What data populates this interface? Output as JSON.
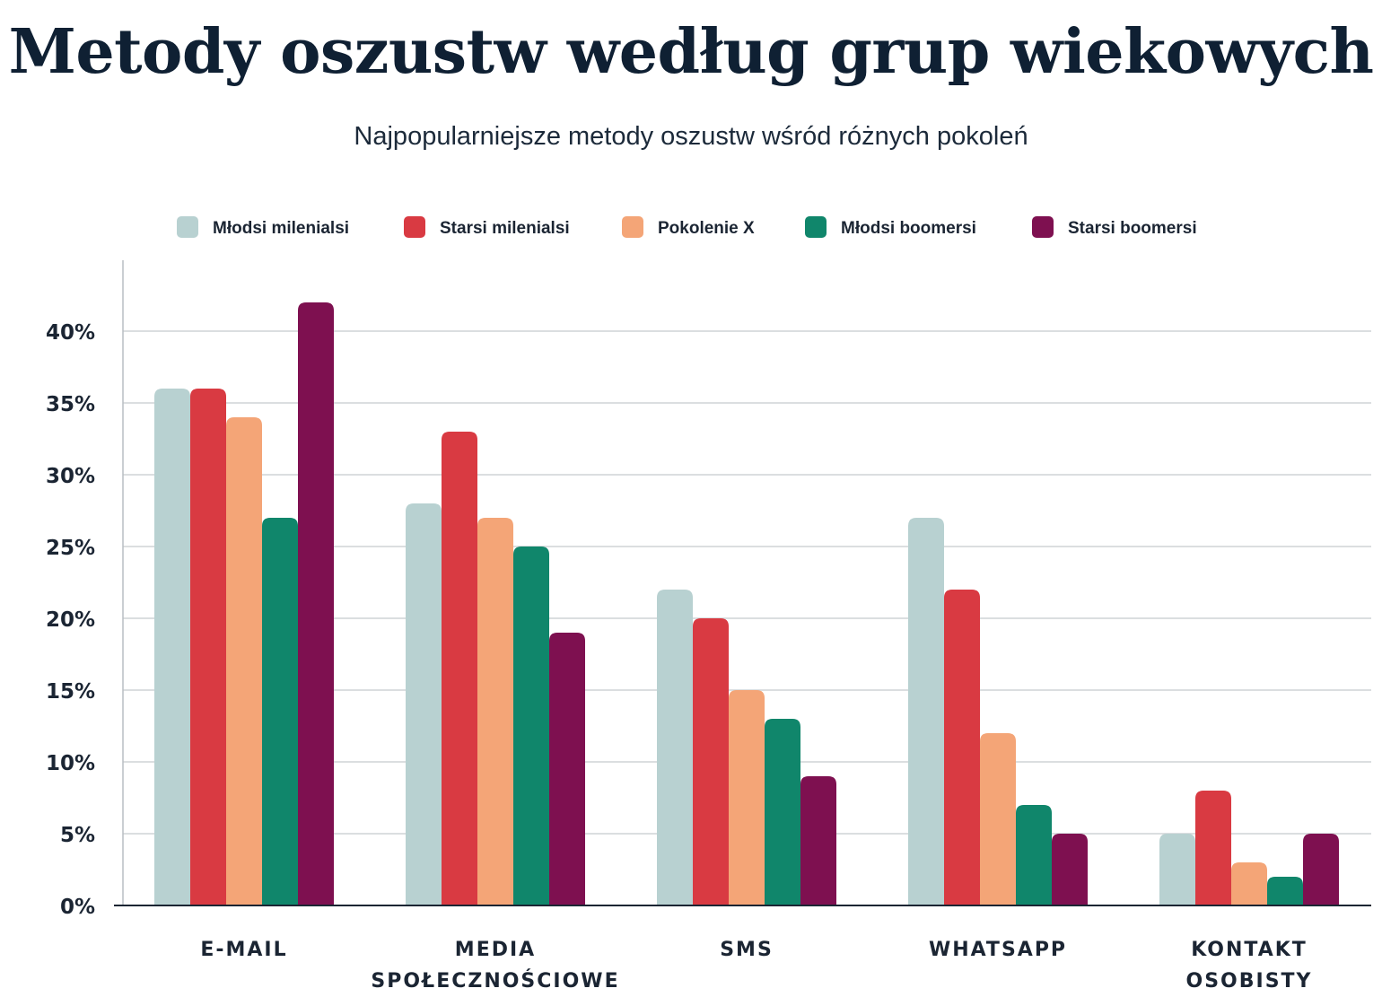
{
  "chart_data": {
    "type": "bar",
    "title": "Metody oszustw według grup wiekowych",
    "subtitle": "Najpopularniejsze metody oszustw wśród różnych pokoleń",
    "categories": [
      [
        "E-MAIL"
      ],
      [
        "MEDIA",
        "SPOŁECZNOŚCIOWE"
      ],
      [
        "SMS"
      ],
      [
        "WHATSAPP"
      ],
      [
        "KONTAKT",
        "OSOBISTY"
      ]
    ],
    "series": [
      {
        "name": "Młodsi milenialsi",
        "color": "#b8d1d1",
        "values": [
          36,
          28,
          22,
          27,
          5
        ]
      },
      {
        "name": "Starsi milenialsi",
        "color": "#d93a42",
        "values": [
          36,
          33,
          20,
          22,
          8
        ]
      },
      {
        "name": "Pokolenie X",
        "color": "#f4a577",
        "values": [
          34,
          27,
          15,
          12,
          3
        ]
      },
      {
        "name": "Młodsi boomersi",
        "color": "#10866b",
        "values": [
          27,
          25,
          13,
          7,
          2
        ]
      },
      {
        "name": "Starsi boomersi",
        "color": "#7e1050",
        "values": [
          42,
          19,
          9,
          5,
          5
        ]
      }
    ],
    "yticks": [
      "0%",
      "5%",
      "10%",
      "15%",
      "20%",
      "25%",
      "30%",
      "35%",
      "40%"
    ],
    "ylim": [
      0,
      45
    ],
    "grid": true,
    "legend_position": "top"
  }
}
